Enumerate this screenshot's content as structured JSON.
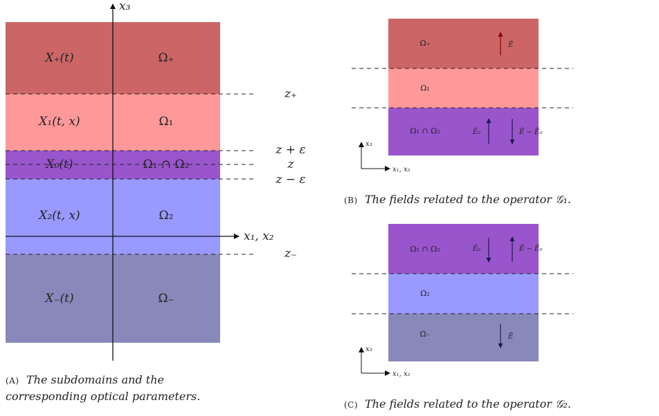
{
  "panel_a": {
    "axis_x3": "x₃",
    "axis_x12": "x₁, x₂",
    "layers": [
      {
        "left": "X₊(t)",
        "right": "Ω₊",
        "color": "#cc6666"
      },
      {
        "left": "X₁(t, x)",
        "right": "Ω₁",
        "color": "#ff9999"
      },
      {
        "left": "X₀(t)",
        "right": "Ω₁ ∩ Ω₂",
        "color": "#9955cc"
      },
      {
        "left": "X₂(t, x)",
        "right": "Ω₂",
        "color": "#9999ff"
      },
      {
        "left": "X₋(t)",
        "right": "Ω₋",
        "color": "#8888bb"
      }
    ],
    "levels": [
      "z₊",
      "z + ε",
      "z",
      "z − ε",
      "z₋"
    ],
    "caption_tag": "(A)",
    "caption_line1": "The subdomains and the",
    "caption_line2": "corresponding optical parameters."
  },
  "panel_b": {
    "layers": [
      {
        "label": "Ω₊",
        "color": "#cc6666"
      },
      {
        "label": "Ω₁",
        "color": "#ff9999"
      },
      {
        "label": "Ω₁ ∩ Ω₂",
        "color": "#9955cc"
      }
    ],
    "field_top": "Ẽ",
    "field_mid_left": "Ẽ₀",
    "field_mid_right": "Ẽ − Ẽ₀",
    "axis_x3": "x₃",
    "axis_x12": "x₁, x₂",
    "caption_tag": "(B)",
    "caption_text": "The fields related to the operator 𝒢₁."
  },
  "panel_c": {
    "layers": [
      {
        "label": "Ω₁ ∩ Ω₂",
        "color": "#9955cc"
      },
      {
        "label": "Ω₂",
        "color": "#9999ff"
      },
      {
        "label": "Ω₋",
        "color": "#8888bb"
      }
    ],
    "field_top_left": "Ẽ₀",
    "field_top_right": "Ẽ − Ẽ₀",
    "field_bottom": "Ẽ",
    "axis_x3": "x₃",
    "axis_x12": "x₁, x₂",
    "caption_tag": "(C)",
    "caption_text": "The fields related to the operator 𝒢₂."
  }
}
